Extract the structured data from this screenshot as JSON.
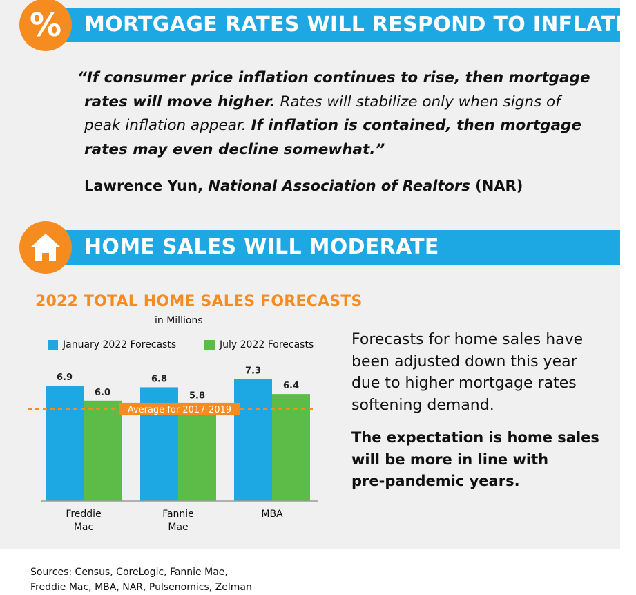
{
  "section1": {
    "badge_symbol": "%",
    "title": "MORTGAGE RATES WILL RESPOND TO INFLATION",
    "quote_lines": [
      {
        "bold": "“If consumer price inflation continues to rise, then mortgage",
        "normal": ""
      },
      {
        "bold": "rates will move higher.",
        "normal": " Rates will stabilize only when signs of"
      },
      {
        "bold": "",
        "normal": "peak inflation appear. "
      },
      {
        "bold": "rates may even decline somewhat.”",
        "normal": ""
      }
    ],
    "quote_line3_bold": "If inflation is contained, then mortgage",
    "attribution": {
      "name": "Lawrence Yun,",
      "org": "National Association of Realtors",
      "abbr": "(NAR)"
    }
  },
  "section2": {
    "icon": "house-icon",
    "title": "HOME SALES WILL MODERATE"
  },
  "chart_data": {
    "type": "bar",
    "title": "2022 TOTAL HOME SALES FORECASTS",
    "subtitle": "in Millions",
    "categories": [
      "Freddie Mac",
      "Fannie Mae",
      "MBA"
    ],
    "category_lines": [
      [
        "Freddie",
        "Mac"
      ],
      [
        "Fannie",
        "Mae"
      ],
      [
        "MBA"
      ]
    ],
    "series": [
      {
        "name": "January 2022 Forecasts",
        "values": [
          6.9,
          6.8,
          7.3
        ],
        "color": "#1ea8e3"
      },
      {
        "name": "July 2022 Forecasts",
        "values": [
          6.0,
          5.8,
          6.4
        ],
        "color": "#5dbb47"
      }
    ],
    "reference_line": {
      "label": "Average for 2017-2019",
      "value": 5.5,
      "color": "#f68b1f"
    },
    "ylim": [
      0,
      8.5
    ],
    "legend_position": "top",
    "grid": false
  },
  "side_text": {
    "lines": [
      "Forecasts for home sales have",
      "been adjusted down this year",
      "due to higher mortgage rates",
      "softening demand."
    ],
    "bold_lines": [
      "The expectation is home sales",
      "will be more in line with",
      "pre-pandemic years."
    ]
  },
  "sources": {
    "lines": [
      "Sources: Census, CoreLogic, Fannie Mae,",
      "Freddie Mac, MBA, NAR, Pulsenomics, Zelman"
    ]
  },
  "colors": {
    "orange": "#f68b1f",
    "blue": "#1ea8e3",
    "green": "#5dbb47",
    "panel": "#f0f0f0"
  }
}
